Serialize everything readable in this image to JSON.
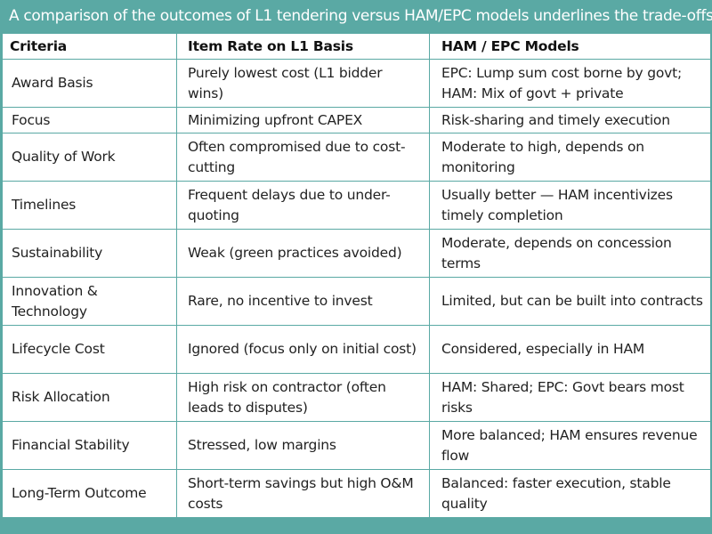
{
  "banner": {
    "text": "A comparison of the outcomes of L1 tendering versus HAM/EPC models underlines the trade-offs:"
  },
  "colors": {
    "banner_bg": "#5aa9a4",
    "border": "#5aa9a4",
    "cell_bg": "#ffffff",
    "banner_text": "#ffffff"
  },
  "table": {
    "headers": [
      "Criteria",
      "Item Rate on L1 Basis",
      "HAM / EPC Models"
    ],
    "rows": [
      [
        "Award Basis",
        "Purely lowest cost (L1 bidder wins)",
        "EPC: Lump sum cost borne by govt; HAM: Mix of govt + private"
      ],
      [
        "Focus",
        "Minimizing upfront CAPEX",
        "Risk-sharing and timely execution"
      ],
      [
        "Quality of Work",
        "Often compromised due to cost-cutting",
        "Moderate to high, depends on monitoring"
      ],
      [
        "Timelines",
        "Frequent delays due to under-quoting",
        "Usually better — HAM incentivizes timely completion"
      ],
      [
        "Sustainability",
        "Weak (green practices avoided)",
        "Moderate, depends on concession terms"
      ],
      [
        "Innovation & Technology",
        "Rare, no incentive to invest",
        "Limited, but can be built into contracts"
      ],
      [
        "Lifecycle Cost",
        "Ignored (focus only on initial cost)",
        "Considered, especially in HAM"
      ],
      [
        "Risk Allocation",
        "High risk on contractor (often leads to disputes)",
        "HAM: Shared; EPC: Govt bears most risks"
      ],
      [
        "Financial Stability",
        "Stressed, low margins",
        "More balanced; HAM ensures revenue flow"
      ],
      [
        "Long-Term Outcome",
        "Short-term savings but high O&M costs",
        "Balanced: faster execution, stable quality"
      ]
    ]
  }
}
